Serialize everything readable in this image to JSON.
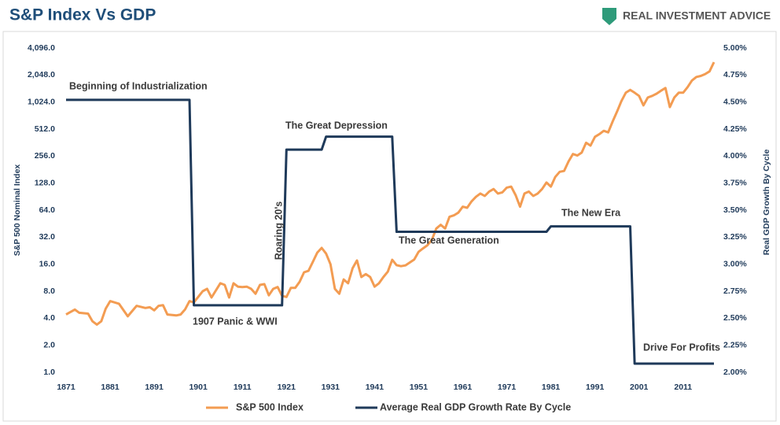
{
  "chart_data": {
    "type": "line",
    "title": "S&P Index Vs GDP",
    "brand": "REAL INVESTMENT ADVICE",
    "ylabel": "S&P 500 Nominal Index",
    "y2label": "Real GDP Growth By Cycle",
    "ylog": true,
    "xlim": [
      1871,
      2018
    ],
    "xticks": [
      1871,
      1881,
      1891,
      1901,
      1911,
      1921,
      1931,
      1941,
      1951,
      1961,
      1971,
      1981,
      1991,
      2001,
      2011
    ],
    "ylim": [
      1,
      4096
    ],
    "yticks": [
      {
        "value": 1,
        "label": "1.0"
      },
      {
        "value": 2,
        "label": "2.0"
      },
      {
        "value": 4,
        "label": "4.0"
      },
      {
        "value": 8,
        "label": "8.0"
      },
      {
        "value": 16,
        "label": "16.0"
      },
      {
        "value": 32,
        "label": "32.0"
      },
      {
        "value": 64,
        "label": "64.0"
      },
      {
        "value": 128,
        "label": "128.0"
      },
      {
        "value": 256,
        "label": "256.0"
      },
      {
        "value": 512,
        "label": "512.0"
      },
      {
        "value": 1024,
        "label": "1,024.0"
      },
      {
        "value": 2048,
        "label": "2,048.0"
      },
      {
        "value": 4096,
        "label": "4,096.0"
      }
    ],
    "y2lim": [
      2,
      5
    ],
    "y2ticks": [
      {
        "value": 2,
        "label": "2.00%"
      },
      {
        "value": 2.25,
        "label": "2.25%"
      },
      {
        "value": 2.5,
        "label": "2.50%"
      },
      {
        "value": 2.75,
        "label": "2.75%"
      },
      {
        "value": 3,
        "label": "3.00%"
      },
      {
        "value": 3.25,
        "label": "3.25%"
      },
      {
        "value": 3.5,
        "label": "3.50%"
      },
      {
        "value": 3.75,
        "label": "3.75%"
      },
      {
        "value": 4,
        "label": "4.00%"
      },
      {
        "value": 4.25,
        "label": "4.25%"
      },
      {
        "value": 4.5,
        "label": "4.50%"
      },
      {
        "value": 4.75,
        "label": "4.75%"
      },
      {
        "value": 5,
        "label": "5.00%"
      }
    ],
    "series": [
      {
        "name": "S&P 500 Index",
        "color": "#f39c52",
        "x": [
          1871,
          1873,
          1874,
          1876,
          1877,
          1878,
          1879,
          1880,
          1881,
          1883,
          1885,
          1887,
          1889,
          1890,
          1891,
          1892,
          1893,
          1894,
          1896,
          1897,
          1898,
          1899,
          1900,
          1902,
          1903,
          1904,
          1906,
          1907,
          1908,
          1909,
          1910,
          1911,
          1912,
          1913,
          1914,
          1915,
          1916,
          1917,
          1918,
          1919,
          1920,
          1921,
          1922,
          1923,
          1924,
          1925,
          1926,
          1927,
          1928,
          1929,
          1930,
          1931,
          1932,
          1933,
          1934,
          1935,
          1936,
          1937,
          1938,
          1939,
          1940,
          1941,
          1942,
          1943,
          1944,
          1945,
          1946,
          1947,
          1948,
          1950,
          1951,
          1952,
          1953,
          1954,
          1955,
          1956,
          1957,
          1958,
          1959,
          1960,
          1961,
          1962,
          1963,
          1964,
          1965,
          1966,
          1967,
          1968,
          1969,
          1970,
          1971,
          1972,
          1973,
          1974,
          1975,
          1976,
          1977,
          1978,
          1979,
          1980,
          1981,
          1982,
          1983,
          1984,
          1985,
          1986,
          1987,
          1988,
          1989,
          1990,
          1991,
          1992,
          1993,
          1994,
          1995,
          1996,
          1997,
          1998,
          1999,
          2000,
          2001,
          2002,
          2003,
          2004,
          2005,
          2006,
          2007,
          2008,
          2009,
          2010,
          2011,
          2012,
          2013,
          2014,
          2015,
          2016,
          2017,
          2018
        ],
        "values": [
          4.4,
          5.0,
          4.6,
          4.5,
          3.7,
          3.4,
          3.7,
          5.1,
          6.2,
          5.8,
          4.2,
          5.5,
          5.2,
          5.3,
          4.9,
          5.5,
          5.6,
          4.4,
          4.3,
          4.4,
          5.0,
          6.2,
          6.0,
          8.0,
          8.5,
          6.8,
          9.8,
          9.4,
          6.8,
          9.8,
          9.0,
          8.9,
          9.0,
          8.5,
          7.5,
          9.4,
          9.6,
          7.2,
          8.5,
          8.9,
          7.1,
          6.9,
          8.7,
          8.7,
          10.2,
          13,
          13.5,
          17,
          21.5,
          24.3,
          21,
          16,
          8.5,
          7.5,
          10.8,
          9.8,
          14.4,
          17.6,
          11.5,
          12.4,
          11.5,
          9,
          9.8,
          11.5,
          13.2,
          17.9,
          15.6,
          15.2,
          15.5,
          18,
          22,
          24,
          26,
          30,
          40,
          44,
          40,
          54,
          56,
          60,
          70,
          68,
          80,
          90,
          98,
          92,
          103,
          110,
          98,
          101,
          114,
          117,
          94,
          70,
          98,
          103,
          92,
          98,
          110,
          130,
          117,
          150,
          171,
          175,
          223,
          270,
          260,
          280,
          360,
          335,
          420,
          450,
          490,
          470,
          620,
          800,
          1050,
          1300,
          1400,
          1300,
          1200,
          940,
          1150,
          1200,
          1270,
          1370,
          1470,
          900,
          1150,
          1300,
          1300,
          1500,
          1780,
          1950,
          2000,
          2100,
          2250,
          2850
        ]
      },
      {
        "name": "Average Real GDP Growth Rate By Cycle",
        "color": "#1f3a5a",
        "axis": "y2",
        "x": [
          1871,
          1899,
          1900,
          1920,
          1921,
          1929,
          1930,
          1945,
          1946,
          1980,
          1981,
          1999,
          2000,
          2018
        ],
        "values": [
          4.52,
          4.52,
          2.62,
          2.62,
          4.06,
          4.06,
          4.18,
          4.18,
          3.3,
          3.3,
          3.35,
          3.35,
          2.08,
          2.08
        ]
      }
    ],
    "annotations": [
      "Beginning of Industrialization",
      "1907 Panic & WWI",
      "Roaring 20's",
      "The Great Depression",
      "The Great Generation",
      "The New Era",
      "Drive For Profits"
    ]
  }
}
